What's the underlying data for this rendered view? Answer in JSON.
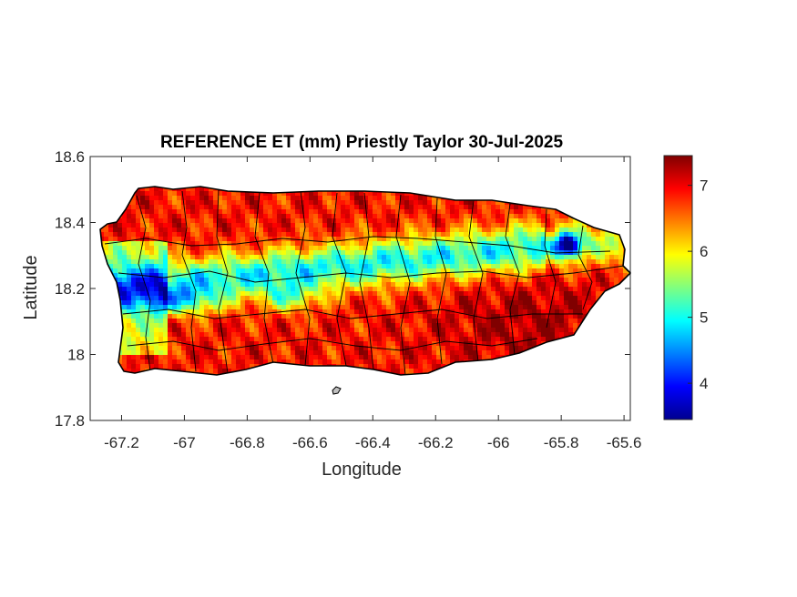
{
  "chart_data": {
    "type": "heatmap",
    "title": "REFERENCE ET (mm) Priestly Taylor 30-Jul-2025",
    "xlabel": "Longitude",
    "ylabel": "Latitude",
    "xlim": [
      -67.3,
      -65.58
    ],
    "ylim": [
      17.8,
      18.6
    ],
    "xticks": [
      -67.2,
      -67,
      -66.8,
      -66.6,
      -66.4,
      -66.2,
      -66,
      -65.8,
      -65.6
    ],
    "yticks": [
      17.8,
      18,
      18.2,
      18.4,
      18.6
    ],
    "colorbar": {
      "colormap": "jet",
      "range": [
        3.45,
        7.45
      ],
      "ticks": [
        4,
        5,
        6,
        7
      ]
    },
    "grid": false,
    "region": "Puerto Rico (municipality boundaries overlaid)",
    "field_summary": [
      {
        "area": "north coast",
        "value_approx": 7.0
      },
      {
        "area": "central mountain ridge",
        "value_approx": 5.0
      },
      {
        "area": "western central minimum",
        "value_approx": 4.0
      },
      {
        "area": "east near -65.78, 18.33",
        "value_approx": 3.8
      },
      {
        "area": "southeast",
        "value_approx": 7.2
      },
      {
        "area": "south coast",
        "value_approx": 6.7
      }
    ]
  }
}
